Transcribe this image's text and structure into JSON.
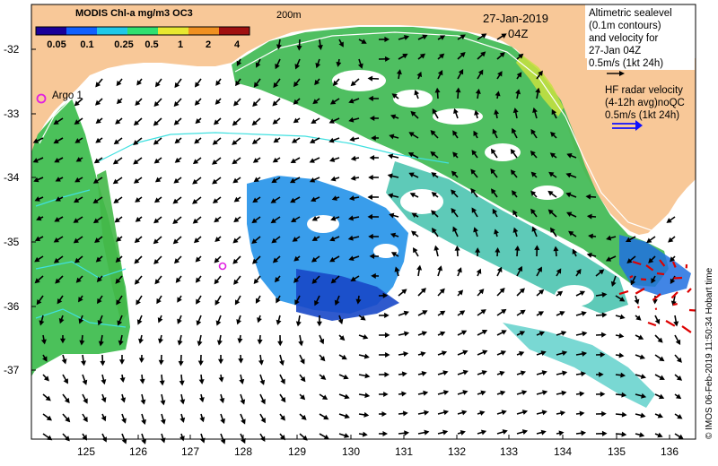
{
  "title": "MODIS Chl-a mg/m3 OC3",
  "colorbar": {
    "labels": [
      "0.05",
      "0.1",
      "0.25",
      "0.5",
      "1",
      "2",
      "4"
    ],
    "colors": [
      "#1a0099",
      "#1060ff",
      "#20c8e8",
      "#30e070",
      "#e8e830",
      "#f09020",
      "#a01010"
    ]
  },
  "isobath_label": "200m",
  "date": "27-Jan-2019",
  "time": "04Z",
  "altimetry_legend": [
    "Altimetric sealevel",
    "(0.1m contours)",
    "and velocity for",
    "27-Jan 04Z",
    "0.5m/s (1kt 24h)"
  ],
  "hf_legend": [
    "HF radar velocity",
    "(4-12h avg)noQC",
    "0.5m/s (1kt 24h)"
  ],
  "argo_label": "Argo 1",
  "y_ticks": [
    "-32",
    "-33",
    "-34",
    "-35",
    "-36",
    "-37"
  ],
  "x_ticks": [
    "125",
    "126",
    "127",
    "128",
    "129",
    "130",
    "131",
    "132",
    "133",
    "134",
    "135",
    "136"
  ],
  "credit": "© IMOS 06-Feb-2019 11:50:34 Hobart time",
  "colors": {
    "land": "#f8c898",
    "arrow": "#000000",
    "hf_arrow": "#dd0000",
    "altimetry_contour": "#40e0e0",
    "argo_marker": "#e020e0"
  }
}
